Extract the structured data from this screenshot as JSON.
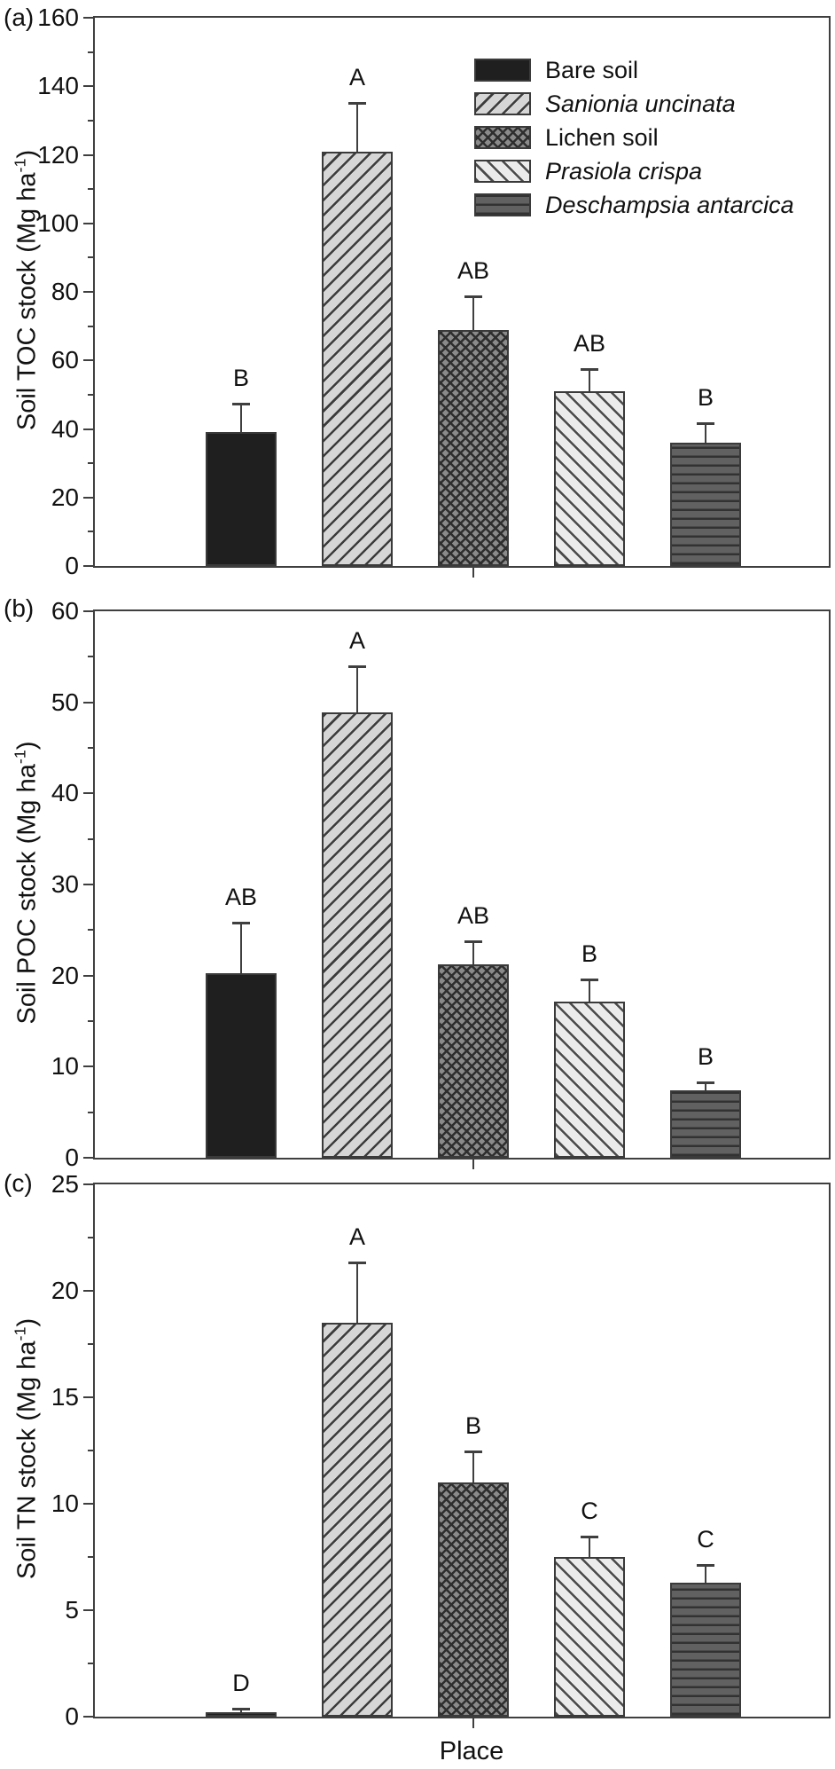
{
  "figure": {
    "xlabel": "Place",
    "panel_tags": [
      "(a)",
      "(b)",
      "(c)"
    ],
    "legend": {
      "position": "top-right-inside-panel-a",
      "items": [
        {
          "label": "Bare soil",
          "italic": false,
          "pattern": "solid-black",
          "swatch_class": "p-bare"
        },
        {
          "label": "Sanionia uncinata",
          "italic": true,
          "pattern": "diagonal-up-hatch",
          "swatch_class": "p-sanionia"
        },
        {
          "label": "Lichen soil",
          "italic": false,
          "pattern": "diamond-crosshatch",
          "swatch_class": "p-lichen"
        },
        {
          "label": "Prasiola crispa",
          "italic": true,
          "pattern": "diagonal-down-hatch",
          "swatch_class": "p-prasiola"
        },
        {
          "label": "Deschampsia antarcica",
          "italic": true,
          "pattern": "horizontal-lines",
          "swatch_class": "p-deschampsia"
        }
      ]
    },
    "colors": {
      "axis": "#3f3f3f",
      "text": "#111111",
      "bar_outline": "#3a3a3a",
      "bare_fill": "#1f1f1f",
      "sanionia_bg": "#d6d6d6",
      "lichen_bg": "#8a8a8a",
      "prasiola_bg": "#ebebeb",
      "deschampsia_bg": "#616161",
      "hatch_line": "#333333"
    }
  },
  "chart_data": [
    {
      "type": "bar",
      "panel": "(a)",
      "ylabel": "Soil TOC stock (Mg ha⁻¹)",
      "ylabel_parts": {
        "main": "Soil TOC stock (Mg ha",
        "sup": "-1",
        "close": ")"
      },
      "xlabel": "Place",
      "ylim": [
        0,
        160
      ],
      "ytick_step": 20,
      "minor_step": 10,
      "grid": false,
      "categories": [
        "Bare soil",
        "Sanionia uncinata",
        "Lichen soil",
        "Prasiola crispa",
        "Deschampsia antarcica"
      ],
      "values": [
        39,
        121,
        69,
        51,
        36
      ],
      "errors_plus": [
        8,
        14,
        9.5,
        6.3,
        5.5
      ],
      "sig_letters": [
        "B",
        "A",
        "AB",
        "AB",
        "B"
      ]
    },
    {
      "type": "bar",
      "panel": "(b)",
      "ylabel": "Soil POC stock (Mg ha⁻¹)",
      "ylabel_parts": {
        "main": "Soil POC stock (Mg ha",
        "sup": "-1",
        "close": ")"
      },
      "xlabel": "Place",
      "ylim": [
        0,
        60
      ],
      "ytick_step": 10,
      "minor_step": 5,
      "grid": false,
      "categories": [
        "Bare soil",
        "Sanionia uncinata",
        "Lichen soil",
        "Prasiola crispa",
        "Deschampsia antarcica"
      ],
      "values": [
        20.3,
        48.9,
        21.2,
        17.1,
        7.4
      ],
      "errors_plus": [
        5.4,
        5.0,
        2.5,
        2.4,
        0.8
      ],
      "sig_letters": [
        "AB",
        "A",
        "AB",
        "B",
        "B"
      ]
    },
    {
      "type": "bar",
      "panel": "(c)",
      "ylabel": "Soil TN stock (Mg ha⁻¹)",
      "ylabel_parts": {
        "main": "Soil TN stock (Mg ha",
        "sup": "-1",
        "close": ")"
      },
      "xlabel": "Place",
      "ylim": [
        0,
        25
      ],
      "ytick_step": 5,
      "minor_step": 2.5,
      "grid": false,
      "categories": [
        "Bare soil",
        "Sanionia uncinata",
        "Lichen soil",
        "Prasiola crispa",
        "Deschampsia antarcica"
      ],
      "values": [
        0.2,
        18.5,
        11.0,
        7.5,
        6.3
      ],
      "errors_plus": [
        0.15,
        2.8,
        1.4,
        0.9,
        0.8
      ],
      "sig_letters": [
        "D",
        "A",
        "B",
        "C",
        "C"
      ]
    }
  ]
}
